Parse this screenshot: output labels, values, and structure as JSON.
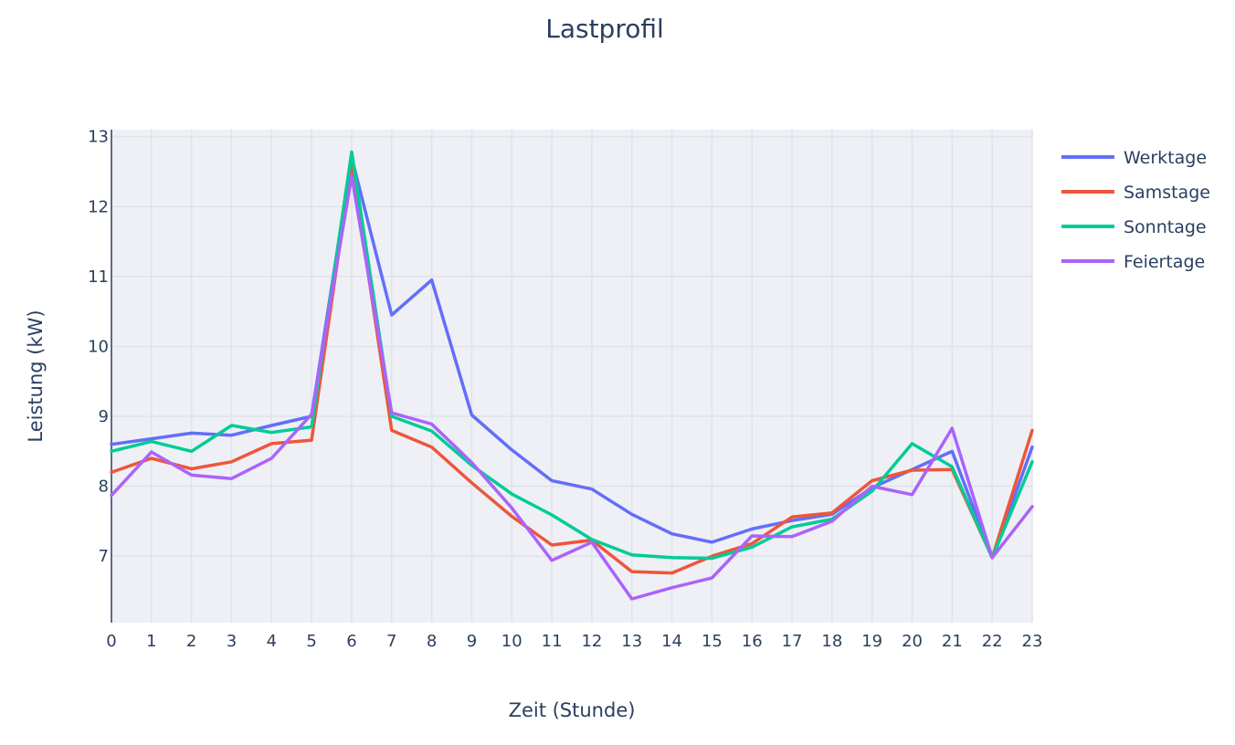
{
  "chart_data": {
    "type": "line",
    "title": "Lastprofil",
    "xlabel": "Zeit (Stunde)",
    "ylabel": "Leistung (kW)",
    "x": [
      0,
      1,
      2,
      3,
      4,
      5,
      6,
      7,
      8,
      9,
      10,
      11,
      12,
      13,
      14,
      15,
      16,
      17,
      18,
      19,
      20,
      21,
      22,
      23
    ],
    "xlim": [
      0,
      23
    ],
    "ylim": [
      6.05,
      13.1
    ],
    "x_ticks": [
      "0",
      "1",
      "2",
      "3",
      "4",
      "5",
      "6",
      "7",
      "8",
      "9",
      "10",
      "11",
      "12",
      "13",
      "14",
      "15",
      "16",
      "17",
      "18",
      "19",
      "20",
      "21",
      "22",
      "23"
    ],
    "y_ticks": [
      7,
      8,
      9,
      10,
      11,
      12,
      13
    ],
    "grid": true,
    "legend_position": "top-right",
    "plot_background": "#eef0f5",
    "series": [
      {
        "name": "Werktage",
        "color": "#636efa",
        "values": [
          8.6,
          8.68,
          8.76,
          8.73,
          8.87,
          9.0,
          12.7,
          10.45,
          10.95,
          9.02,
          8.52,
          8.08,
          7.96,
          7.6,
          7.32,
          7.2,
          7.39,
          7.51,
          7.6,
          7.98,
          8.24,
          8.5,
          6.98,
          8.56
        ]
      },
      {
        "name": "Samstage",
        "color": "#ef553b",
        "values": [
          8.2,
          8.4,
          8.25,
          8.35,
          8.61,
          8.66,
          12.62,
          8.8,
          8.56,
          8.05,
          7.57,
          7.16,
          7.23,
          6.78,
          6.76,
          7.0,
          7.18,
          7.56,
          7.62,
          8.08,
          8.23,
          8.24,
          6.98,
          8.8
        ]
      },
      {
        "name": "Sonntage",
        "color": "#00cc96",
        "values": [
          8.5,
          8.64,
          8.5,
          8.87,
          8.77,
          8.85,
          12.78,
          9.0,
          8.79,
          8.3,
          7.89,
          7.59,
          7.24,
          7.02,
          6.98,
          6.97,
          7.13,
          7.42,
          7.53,
          7.93,
          8.61,
          8.28,
          6.98,
          8.35
        ]
      },
      {
        "name": "Feiertage",
        "color": "#ab63fa",
        "values": [
          7.87,
          8.49,
          8.16,
          8.11,
          8.4,
          9.03,
          12.44,
          9.05,
          8.89,
          8.34,
          7.69,
          6.94,
          7.2,
          6.39,
          6.55,
          6.69,
          7.29,
          7.28,
          7.5,
          8.0,
          7.88,
          8.83,
          6.98,
          7.71
        ]
      }
    ]
  }
}
